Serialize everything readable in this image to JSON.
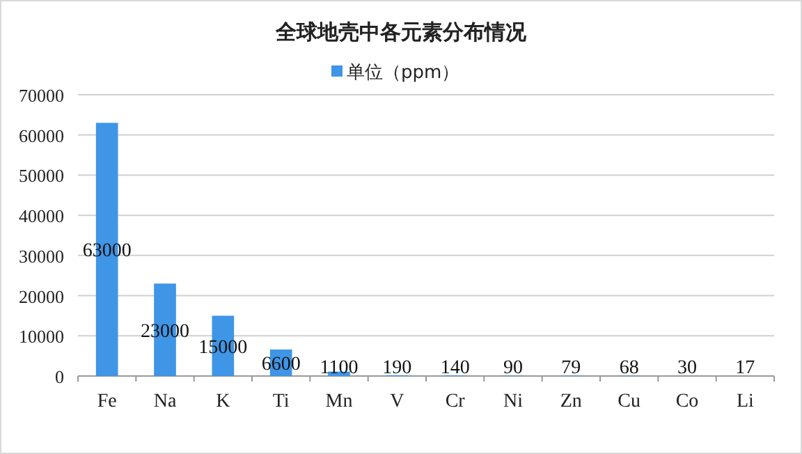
{
  "chart_data": {
    "type": "bar",
    "title": "全球地壳中各元素分布情况",
    "categories": [
      "Fe",
      "Na",
      "K",
      "Ti",
      "Mn",
      "V",
      "Cr",
      "Ni",
      "Zn",
      "Cu",
      "Co",
      "Li"
    ],
    "series": [
      {
        "name": "单位（ppm）",
        "color": "#3f95e6",
        "values": [
          63000,
          23000,
          15000,
          6600,
          1100,
          190,
          140,
          90,
          79,
          68,
          30,
          17
        ]
      }
    ],
    "ylim": [
      0,
      70000
    ],
    "yticks": [
      0,
      10000,
      20000,
      30000,
      40000,
      50000,
      60000,
      70000
    ],
    "grid": "y",
    "legend": "top",
    "data_labels": true
  }
}
